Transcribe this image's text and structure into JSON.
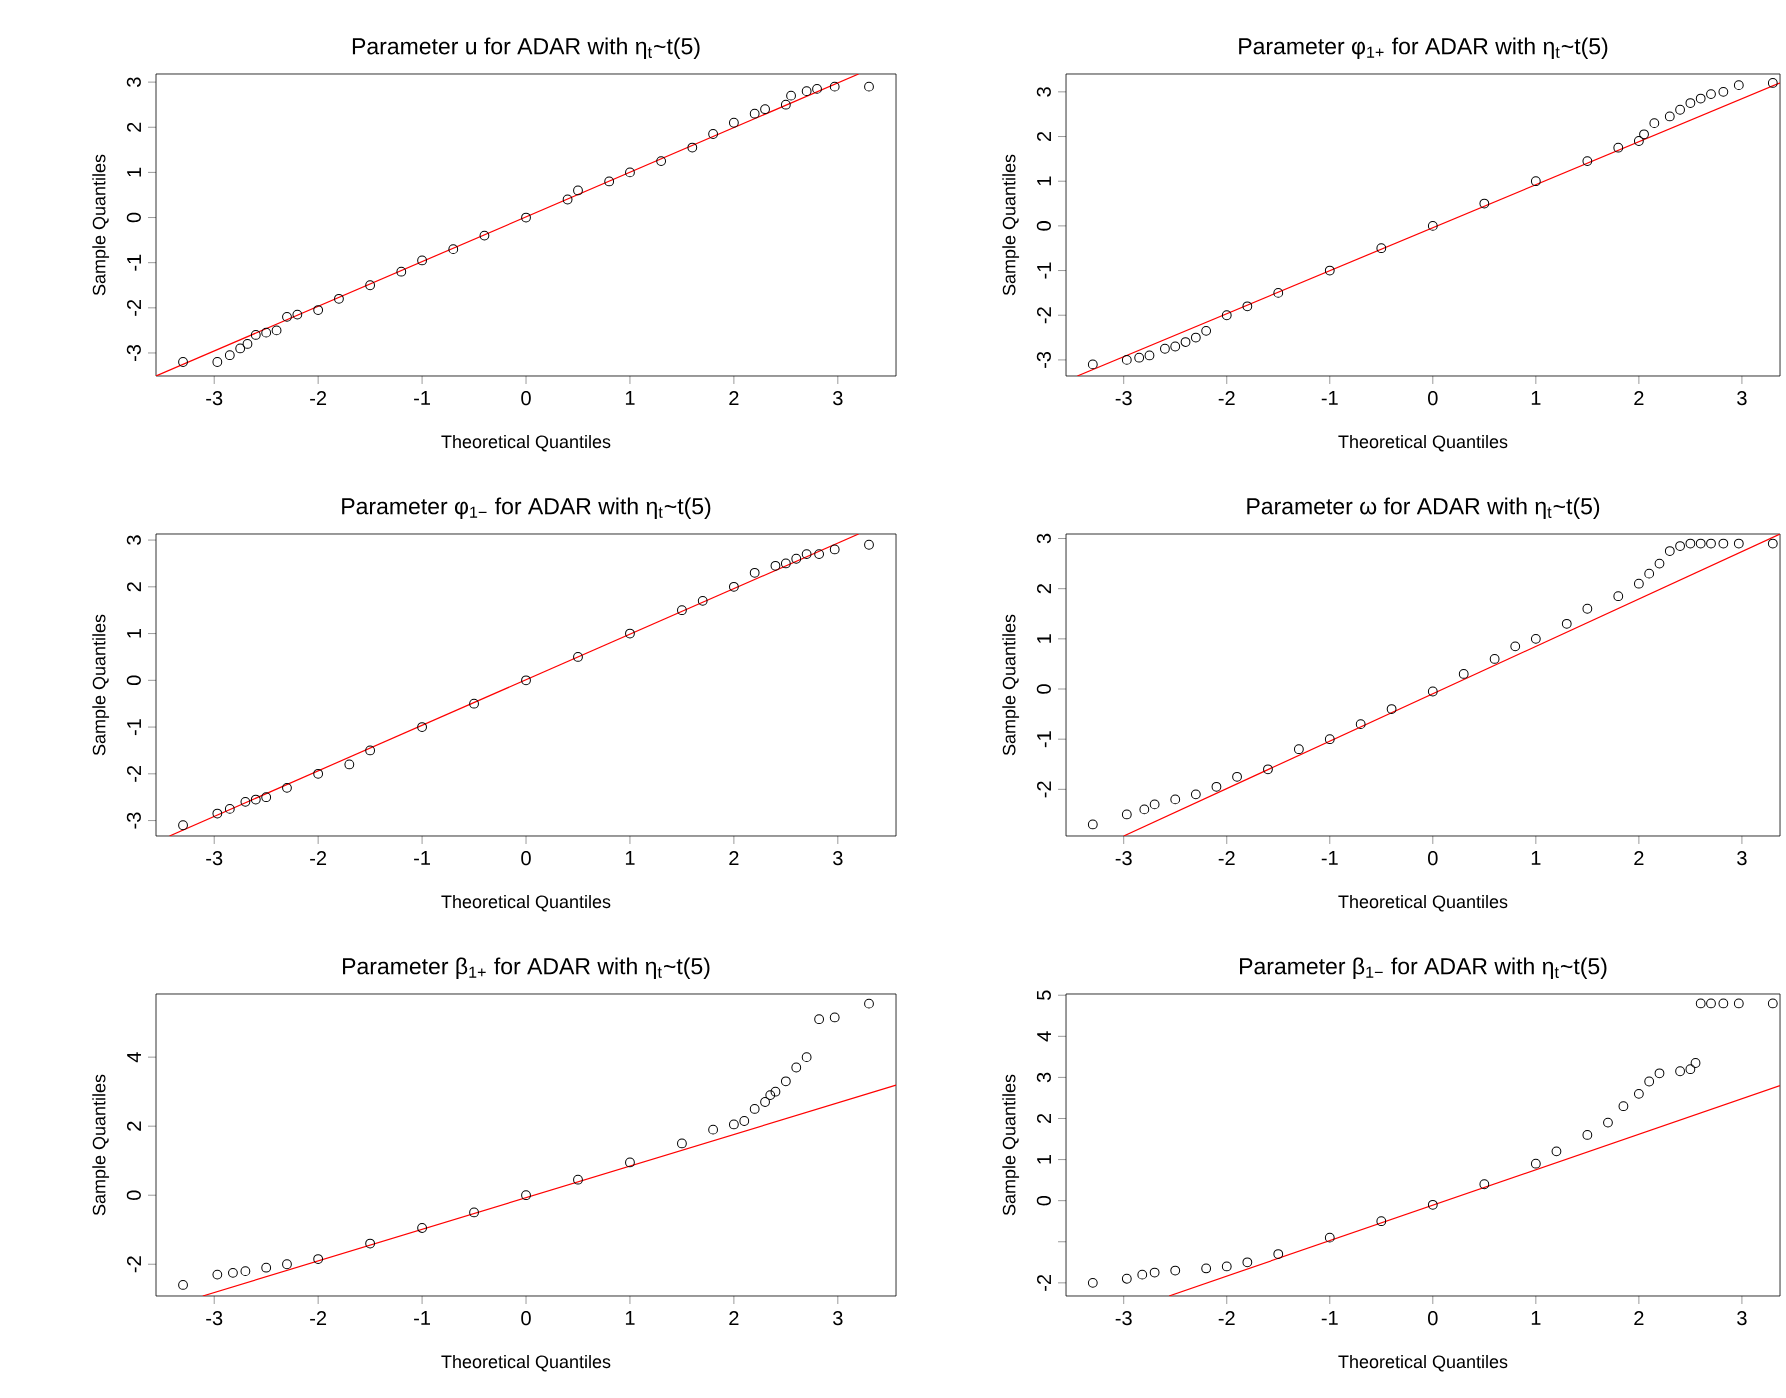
{
  "chart_data": [
    {
      "type": "scatter",
      "title": "Parameter u for ADAR  with η$_{t}$~t(5)",
      "xlabel": "Theoretical Quantiles",
      "ylabel": "Sample Quantiles",
      "xlim": [
        -3.56,
        3.56
      ],
      "ylim": [
        -3.51,
        3.18
      ],
      "xticks": [
        -3,
        -2,
        -1,
        0,
        1,
        2,
        3
      ],
      "yticks": [
        -3,
        -2,
        -1,
        0,
        1,
        2,
        3
      ],
      "series": [
        {
          "marker": "circle",
          "color": "#000000",
          "x": [
            -3.3,
            -2.97,
            -2.85,
            -2.75,
            -2.68,
            -2.6,
            -2.5,
            -2.4,
            -2.3,
            -2.2,
            -2.0,
            -1.8,
            -1.5,
            -1.2,
            -1.0,
            -0.7,
            -0.4,
            0,
            0.4,
            0.5,
            0.8,
            1.0,
            1.3,
            1.6,
            1.8,
            2.0,
            2.2,
            2.3,
            2.5,
            2.55,
            2.7,
            2.8,
            2.97,
            3.3
          ],
          "values": [
            -3.2,
            -3.2,
            -3.05,
            -2.9,
            -2.8,
            -2.6,
            -2.55,
            -2.5,
            -2.2,
            -2.15,
            -2.05,
            -1.8,
            -1.5,
            -1.2,
            -0.95,
            -0.7,
            -0.4,
            0,
            0.4,
            0.6,
            0.8,
            1.0,
            1.25,
            1.55,
            1.85,
            2.1,
            2.3,
            2.4,
            2.5,
            2.7,
            2.8,
            2.85,
            2.9,
            2.9
          ]
        },
        {
          "type": "line",
          "marker": "none",
          "color": "#ff0000",
          "x": [
            -3.56,
            3.2
          ],
          "values": [
            -3.51,
            3.18
          ]
        }
      ]
    },
    {
      "type": "scatter",
      "title": "Parameter φ$_{1+}$  for ADAR with η$_{t}$~t(5)",
      "xlabel": "Theoretical Quantiles",
      "ylabel": "Sample Quantiles",
      "xlim": [
        -3.56,
        3.37
      ],
      "ylim": [
        -3.36,
        3.4
      ],
      "xticks": [
        -3,
        -2,
        -1,
        0,
        1,
        2,
        3
      ],
      "yticks": [
        -3,
        -2,
        -1,
        0,
        1,
        2,
        3
      ],
      "series": [
        {
          "marker": "circle",
          "color": "#000000",
          "x": [
            -3.3,
            -2.97,
            -2.85,
            -2.75,
            -2.6,
            -2.5,
            -2.4,
            -2.3,
            -2.2,
            -2.0,
            -1.8,
            -1.5,
            -1.0,
            -0.5,
            0,
            0.5,
            1.0,
            1.5,
            1.8,
            2.0,
            2.05,
            2.15,
            2.3,
            2.4,
            2.5,
            2.6,
            2.7,
            2.82,
            2.97,
            3.3
          ],
          "values": [
            -3.1,
            -3.0,
            -2.95,
            -2.9,
            -2.75,
            -2.7,
            -2.6,
            -2.5,
            -2.35,
            -2.0,
            -1.8,
            -1.5,
            -1.0,
            -0.5,
            0,
            0.5,
            1.0,
            1.45,
            1.75,
            1.9,
            2.05,
            2.3,
            2.45,
            2.6,
            2.75,
            2.85,
            2.95,
            3.0,
            3.15,
            3.2
          ]
        },
        {
          "type": "line",
          "marker": "none",
          "color": "#ff0000",
          "x": [
            -3.45,
            3.37
          ],
          "values": [
            -3.36,
            3.2
          ]
        }
      ]
    },
    {
      "type": "scatter",
      "title": "Parameter φ$_{1−}$ for ADAR  with η$_{t}$~t(5)",
      "xlabel": "Theoretical Quantiles",
      "ylabel": "Sample Quantiles",
      "xlim": [
        -3.56,
        3.56
      ],
      "ylim": [
        -3.33,
        3.13
      ],
      "xticks": [
        -3,
        -2,
        -1,
        0,
        1,
        2,
        3
      ],
      "yticks": [
        -3,
        -2,
        -1,
        0,
        1,
        2,
        3
      ],
      "series": [
        {
          "marker": "circle",
          "color": "#000000",
          "x": [
            -3.3,
            -2.97,
            -2.85,
            -2.7,
            -2.6,
            -2.5,
            -2.3,
            -2.0,
            -1.7,
            -1.5,
            -1.0,
            -0.5,
            0,
            0.5,
            1.0,
            1.5,
            1.7,
            2.0,
            2.2,
            2.4,
            2.5,
            2.6,
            2.7,
            2.82,
            2.97,
            3.3
          ],
          "values": [
            -3.1,
            -2.85,
            -2.75,
            -2.6,
            -2.55,
            -2.5,
            -2.3,
            -2.0,
            -1.8,
            -1.5,
            -1.0,
            -0.5,
            0,
            0.5,
            1.0,
            1.5,
            1.7,
            2.0,
            2.3,
            2.45,
            2.5,
            2.6,
            2.7,
            2.7,
            2.8,
            2.9
          ]
        },
        {
          "type": "line",
          "marker": "none",
          "color": "#ff0000",
          "x": [
            -3.43,
            3.2
          ],
          "values": [
            -3.33,
            3.13
          ]
        }
      ]
    },
    {
      "type": "scatter",
      "title": "Parameter ω for ADAR  with η$_{t}$~t(5)",
      "xlabel": "Theoretical Quantiles",
      "ylabel": "Sample Quantiles",
      "xlim": [
        -3.56,
        3.37
      ],
      "ylim": [
        -2.93,
        3.09
      ],
      "xticks": [
        -3,
        -2,
        -1,
        0,
        1,
        2,
        3
      ],
      "yticks": [
        -2,
        -1,
        0,
        1,
        2,
        3
      ],
      "series": [
        {
          "marker": "circle",
          "color": "#000000",
          "x": [
            -3.3,
            -2.97,
            -2.8,
            -2.7,
            -2.5,
            -2.3,
            -2.1,
            -1.9,
            -1.6,
            -1.3,
            -1.0,
            -0.7,
            -0.4,
            0,
            0.3,
            0.6,
            0.8,
            1.0,
            1.3,
            1.5,
            1.8,
            2.0,
            2.1,
            2.2,
            2.3,
            2.4,
            2.5,
            2.6,
            2.7,
            2.82,
            2.97,
            3.3
          ],
          "values": [
            -2.7,
            -2.5,
            -2.4,
            -2.3,
            -2.2,
            -2.1,
            -1.95,
            -1.75,
            -1.6,
            -1.2,
            -1.0,
            -0.7,
            -0.4,
            -0.05,
            0.3,
            0.6,
            0.85,
            1.0,
            1.3,
            1.6,
            1.85,
            2.1,
            2.3,
            2.5,
            2.75,
            2.85,
            2.9,
            2.9,
            2.9,
            2.9,
            2.9,
            2.9
          ]
        },
        {
          "type": "line",
          "marker": "none",
          "color": "#ff0000",
          "x": [
            -3.0,
            3.37
          ],
          "values": [
            -2.93,
            3.09
          ]
        }
      ]
    },
    {
      "type": "scatter",
      "title": "Parameter β$_{1+}$ for ADAR  with η$_{t}$~t(5)",
      "xlabel": "Theoretical Quantiles",
      "ylabel": "Sample Quantiles",
      "xlim": [
        -3.56,
        3.56
      ],
      "ylim": [
        -2.92,
        5.83
      ],
      "xticks": [
        -3,
        -2,
        -1,
        0,
        1,
        2,
        3
      ],
      "yticks": [
        -2,
        0,
        2,
        4
      ],
      "series": [
        {
          "marker": "circle",
          "color": "#000000",
          "x": [
            -3.3,
            -2.97,
            -2.82,
            -2.7,
            -2.5,
            -2.3,
            -2.0,
            -1.5,
            -1.0,
            -0.5,
            0,
            0.5,
            1.0,
            1.5,
            1.8,
            2.0,
            2.1,
            2.2,
            2.3,
            2.35,
            2.4,
            2.5,
            2.6,
            2.7,
            2.82,
            2.97,
            3.3
          ],
          "values": [
            -2.6,
            -2.3,
            -2.25,
            -2.2,
            -2.1,
            -2.0,
            -1.85,
            -1.4,
            -0.95,
            -0.5,
            0,
            0.45,
            0.95,
            1.5,
            1.9,
            2.05,
            2.15,
            2.5,
            2.7,
            2.9,
            3.0,
            3.3,
            3.7,
            4.0,
            5.1,
            5.15,
            5.55
          ]
        },
        {
          "type": "line",
          "marker": "none",
          "color": "#ff0000",
          "x": [
            -3.11,
            3.56
          ],
          "values": [
            -2.92,
            3.19
          ]
        }
      ]
    },
    {
      "type": "scatter",
      "title": "Parameter β$_{1−}$ for ADAR  with η$_{t}$~t(5)",
      "xlabel": "Theoretical Quantiles",
      "ylabel": "Sample Quantiles",
      "xlim": [
        -3.56,
        3.37
      ],
      "ylim": [
        -2.32,
        5.03
      ],
      "xticks": [
        -3,
        -2,
        -1,
        0,
        1,
        2,
        3
      ],
      "yticks": [
        -2,
        {
          "value": -1,
          "label": null
        },
        0,
        1,
        2,
        3,
        4,
        5
      ],
      "series": [
        {
          "marker": "circle",
          "color": "#000000",
          "x": [
            -3.3,
            -2.97,
            -2.82,
            -2.7,
            -2.5,
            -2.2,
            -2.0,
            -1.8,
            -1.5,
            -1.0,
            -0.5,
            0,
            0.5,
            1.0,
            1.2,
            1.5,
            1.7,
            1.85,
            2.0,
            2.1,
            2.2,
            2.4,
            2.5,
            2.55,
            2.6,
            2.7,
            2.82,
            2.97,
            3.3
          ],
          "values": [
            -2.0,
            -1.9,
            -1.8,
            -1.75,
            -1.7,
            -1.65,
            -1.6,
            -1.5,
            -1.3,
            -0.9,
            -0.5,
            -0.1,
            0.4,
            0.9,
            1.2,
            1.6,
            1.9,
            2.3,
            2.6,
            2.9,
            3.1,
            3.15,
            3.2,
            3.35,
            4.8,
            4.8,
            4.8,
            4.8,
            4.8
          ]
        },
        {
          "type": "line",
          "marker": "none",
          "color": "#ff0000",
          "x": [
            -2.56,
            3.37
          ],
          "values": [
            -2.32,
            2.8
          ]
        }
      ]
    }
  ]
}
